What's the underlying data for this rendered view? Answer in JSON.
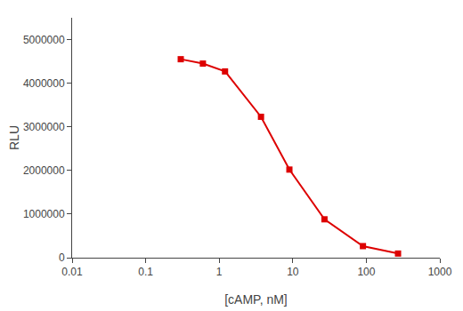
{
  "chart_data": {
    "type": "line",
    "x": [
      0.3,
      0.6,
      1.2,
      3.7,
      9.0,
      27.0,
      90.0,
      270.0
    ],
    "values": [
      4550000,
      4450000,
      4270000,
      3230000,
      2020000,
      880000,
      265000,
      95000
    ],
    "color": "#dd0000",
    "marker": "square",
    "line_style": "solid",
    "xlabel": "[cAMP, nM]",
    "ylabel": "RLU",
    "log": "x",
    "xlim": [
      0.01,
      1000
    ],
    "xticks": [
      0.01,
      0.1,
      1,
      10,
      100,
      1000
    ],
    "ylim": [
      0,
      5500000
    ],
    "yticks": [
      0,
      1000000,
      2000000,
      3000000,
      4000000,
      5000000
    ],
    "grid": false
  }
}
